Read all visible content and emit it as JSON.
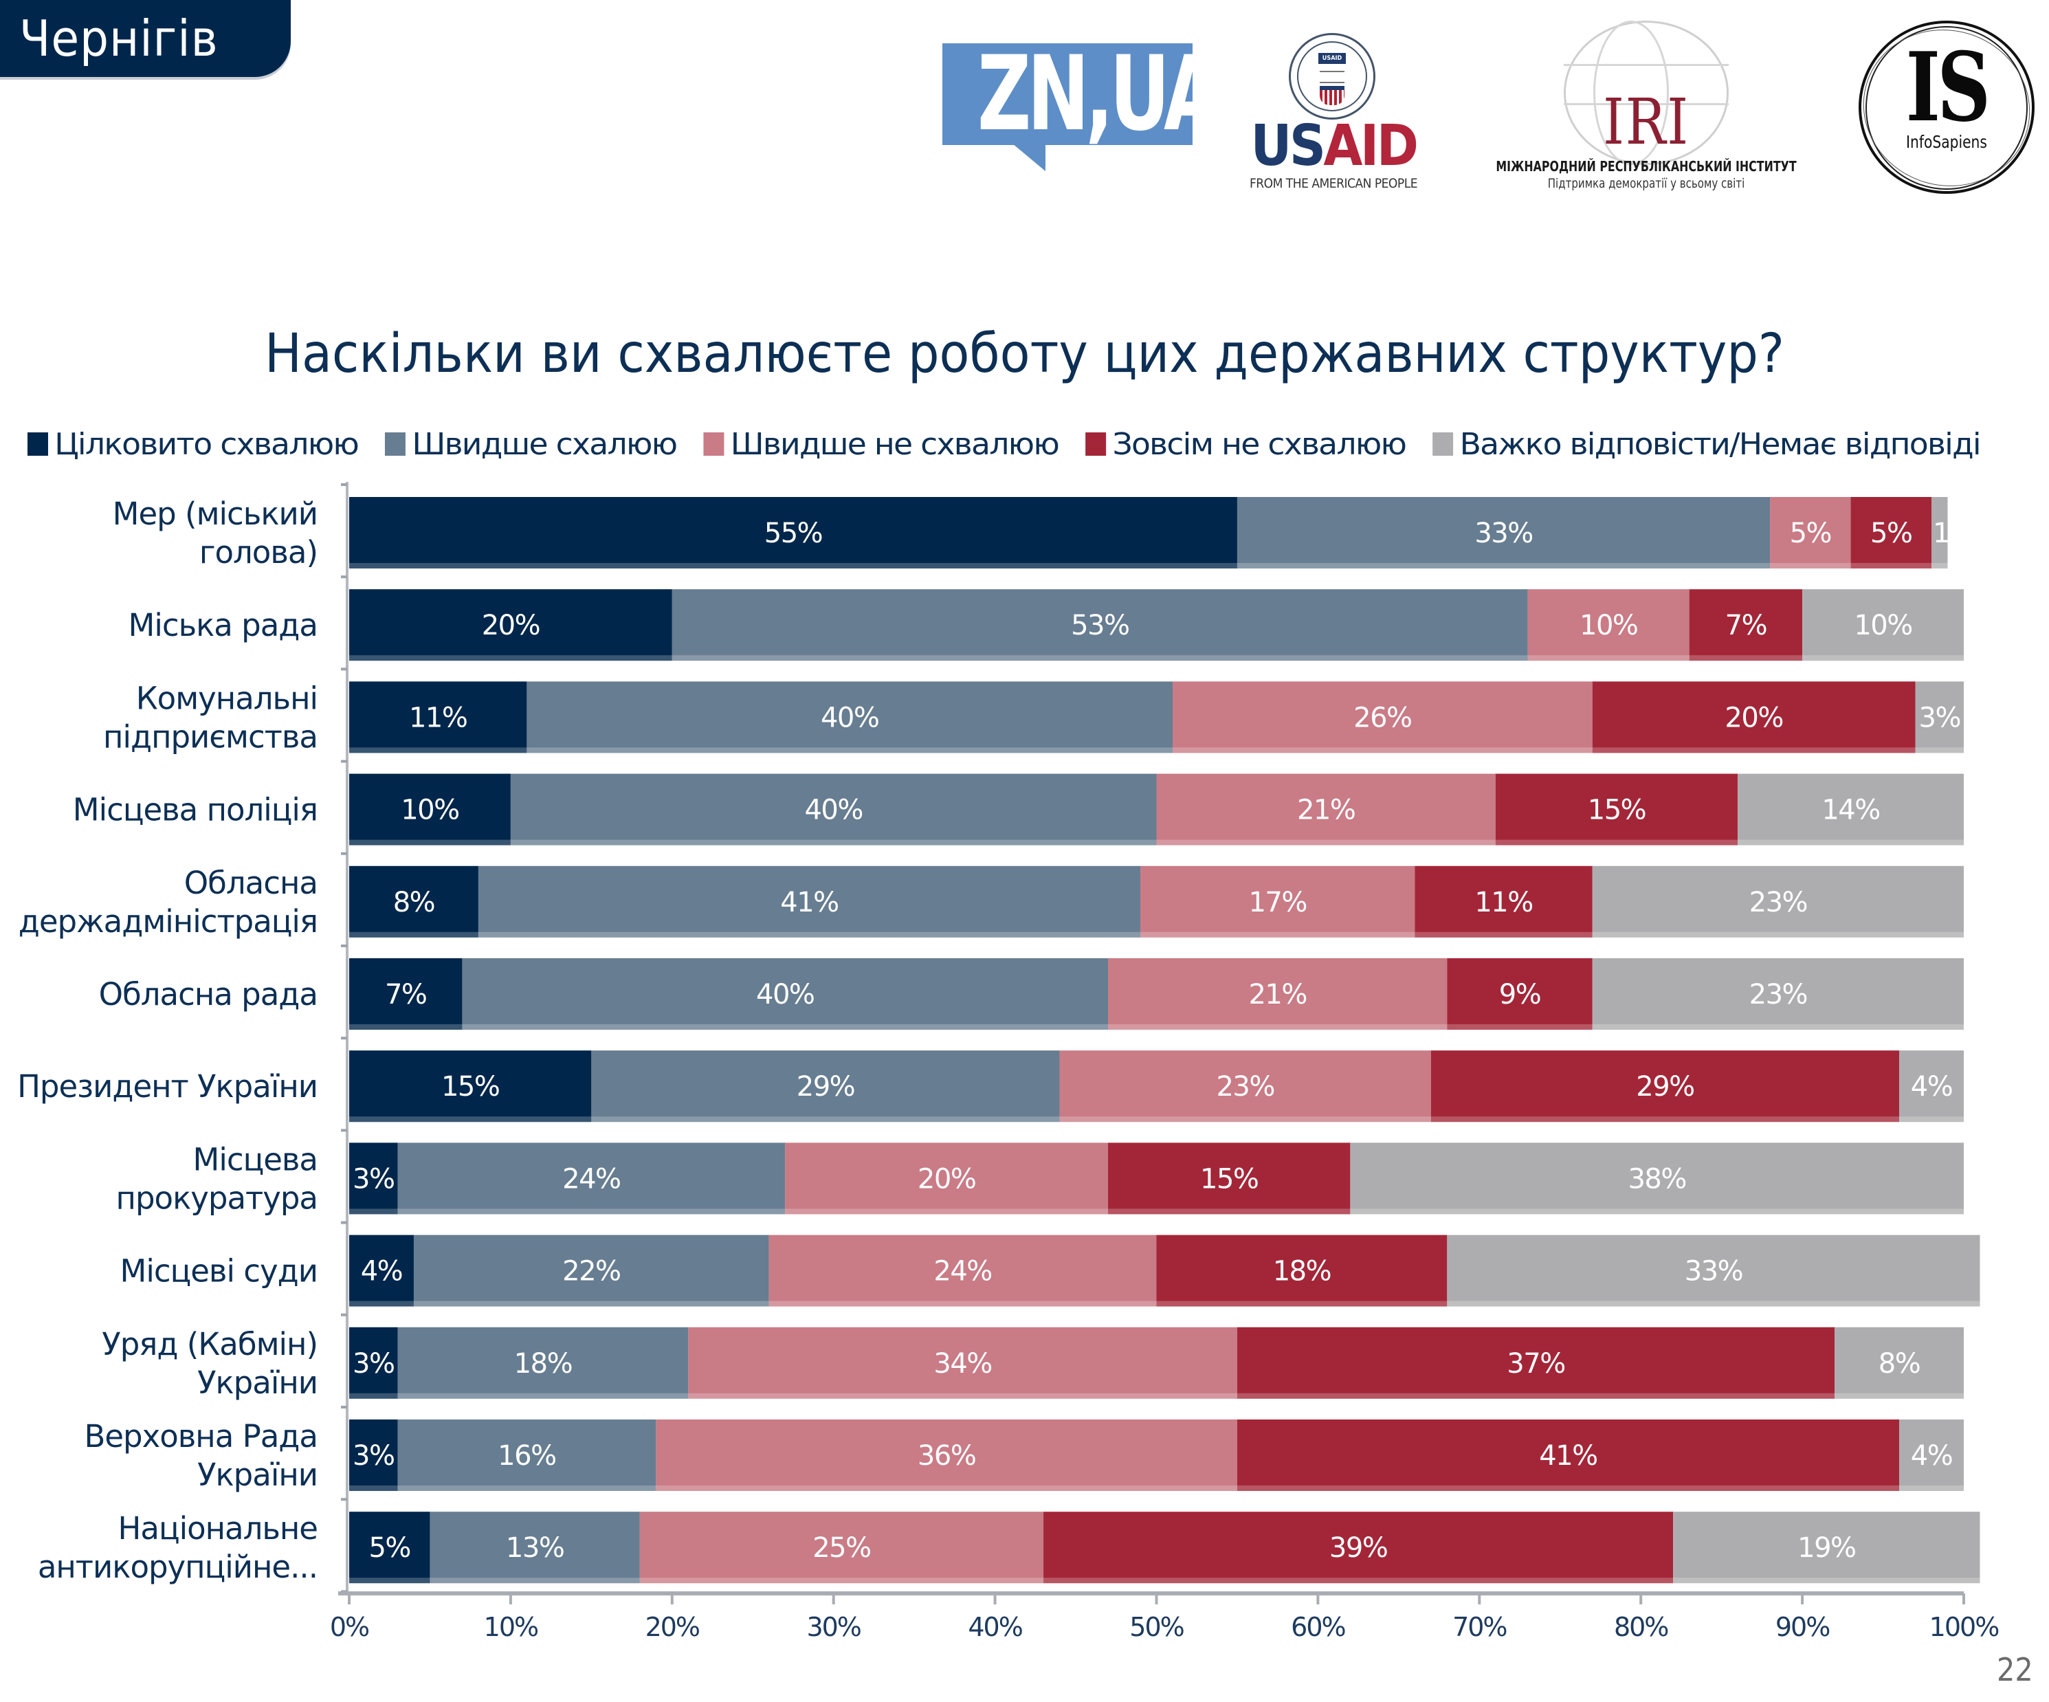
{
  "header": {
    "region_tab": "Чернігів",
    "page_number": "22"
  },
  "logos": {
    "zn": {
      "text": "ZN,UA"
    },
    "usaid": {
      "seal_text": "USAID",
      "word_us": "US",
      "word_aid": "AID",
      "tagline": "FROM THE AMERICAN PEOPLE"
    },
    "iri": {
      "word": "IRI",
      "line1": "МІЖНАРОДНИЙ РЕСПУБЛІКАНСЬКИЙ ІНСТИТУТ",
      "line2": "Підтримка демократії у всьому світі"
    },
    "infosapiens": {
      "word": "IS",
      "sub": "InfoSapiens"
    }
  },
  "colors": {
    "navy": "#00264b",
    "slate": "#677d91",
    "pink": "#c97b86",
    "red": "#a32638",
    "gray": "#adadaf",
    "text": "#0d2f55"
  },
  "chart_data": {
    "type": "bar",
    "orientation": "horizontal",
    "stacked": true,
    "title": "Наскільки ви схвалюєте роботу цих державних структур?",
    "xlabel": "",
    "ylabel": "",
    "xlim": [
      0,
      100
    ],
    "x_ticks": [
      "0%",
      "10%",
      "20%",
      "30%",
      "40%",
      "50%",
      "60%",
      "70%",
      "80%",
      "90%",
      "100%"
    ],
    "legend_position": "top",
    "grid": false,
    "categories": [
      "Мер (міський голова)",
      "Міська рада",
      "Комунальні підприємства",
      "Місцева поліція",
      "Обласна держадміністрація",
      "Обласна рада",
      "Президент України",
      "Місцева прокуратура",
      "Місцеві суди",
      "Уряд (Кабмін) України",
      "Верховна Рада України",
      "Національне антикорупційне..."
    ],
    "category_lines": [
      [
        "Мер (міський",
        "голова)"
      ],
      [
        "Міська рада"
      ],
      [
        "Комунальні",
        "підприємства"
      ],
      [
        "Місцева поліція"
      ],
      [
        "Обласна",
        "держадміністрація"
      ],
      [
        "Обласна рада"
      ],
      [
        "Президент України"
      ],
      [
        "Місцева",
        "прокуратура"
      ],
      [
        "Місцеві суди"
      ],
      [
        "Уряд (Кабмін)",
        "України"
      ],
      [
        "Верховна Рада",
        "України"
      ],
      [
        "Національне",
        "антикорупційне..."
      ]
    ],
    "series": [
      {
        "name": "Цілковито схвалюю",
        "color": "#00264b",
        "values": [
          55,
          20,
          11,
          10,
          8,
          7,
          15,
          3,
          4,
          3,
          3,
          5
        ]
      },
      {
        "name": "Швидше схалюю",
        "color": "#677d91",
        "values": [
          33,
          53,
          40,
          40,
          41,
          40,
          29,
          24,
          22,
          18,
          16,
          13
        ]
      },
      {
        "name": "Швидше не схвалюю",
        "color": "#c97b86",
        "values": [
          5,
          10,
          26,
          21,
          17,
          21,
          23,
          20,
          24,
          34,
          36,
          25
        ]
      },
      {
        "name": "Зовсім не схвалюю",
        "color": "#a32638",
        "values": [
          5,
          7,
          20,
          15,
          11,
          9,
          29,
          15,
          18,
          37,
          41,
          39
        ]
      },
      {
        "name": "Важко відповісти/Немає відповіді",
        "color": "#adadaf",
        "values": [
          1,
          10,
          3,
          14,
          23,
          23,
          4,
          38,
          33,
          8,
          4,
          19
        ]
      }
    ],
    "value_suffix": "%"
  }
}
